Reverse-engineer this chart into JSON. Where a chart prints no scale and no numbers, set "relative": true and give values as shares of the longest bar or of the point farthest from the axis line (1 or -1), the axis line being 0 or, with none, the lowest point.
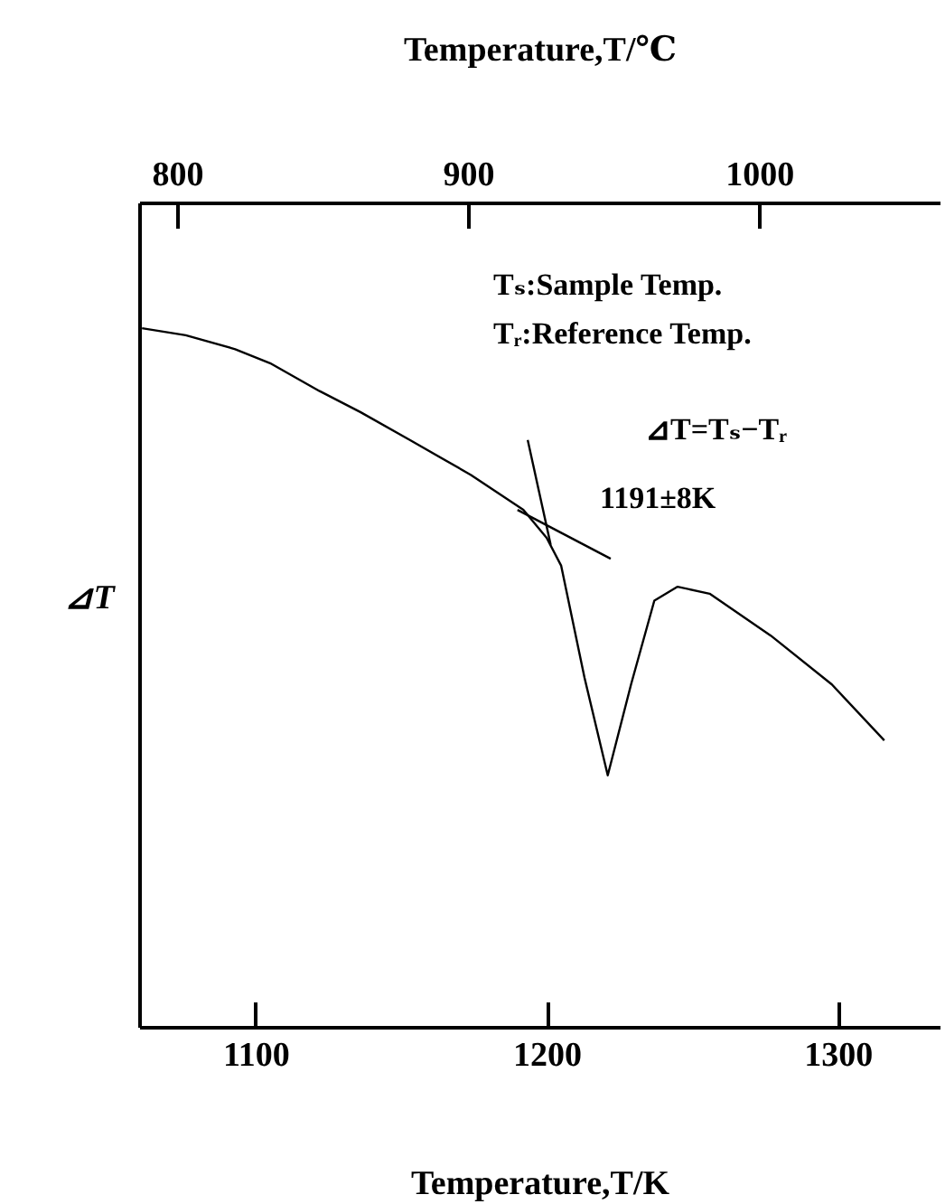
{
  "chart_data": {
    "type": "line",
    "xlabel": "Temperature,T/K",
    "x2label": "Temperature,T/℃",
    "ylabel": "⊿T",
    "relative": true,
    "xlim": [
      1060,
      1335
    ],
    "xticks": [
      1100,
      1200,
      1300
    ],
    "x2lim": [
      787,
      1062
    ],
    "x2ticks": [
      800,
      900,
      1000
    ],
    "annotations": [
      "Tₛ:Sample Temp.",
      "Tᵣ:Reference Temp.",
      "⊿T=Tₛ−Tᵣ",
      {
        "text": "1191±8K",
        "x": 1191,
        "y": 0.73
      }
    ],
    "series": [
      {
        "color": "#000000",
        "x": [
          1061,
          1076,
          1093,
          1105,
          1122,
          1136,
          1153,
          1174,
          1192,
          1200,
          1205,
          1213,
          1221,
          1229,
          1237,
          1245,
          1256,
          1277,
          1298,
          1316
        ],
        "values": [
          1.0,
          0.99,
          0.97,
          0.95,
          0.91,
          0.88,
          0.84,
          0.79,
          0.74,
          0.7,
          0.66,
          0.5,
          0.36,
          0.49,
          0.61,
          0.63,
          0.62,
          0.56,
          0.49,
          0.41
        ]
      },
      {
        "type": "line",
        "color": "#000000",
        "x": [
          1190,
          1222
        ],
        "values": [
          0.74,
          0.67
        ]
      },
      {
        "type": "line",
        "color": "#000000",
        "x": [
          1193.5,
          1201.4
        ],
        "values": [
          0.84,
          0.69
        ]
      }
    ]
  }
}
